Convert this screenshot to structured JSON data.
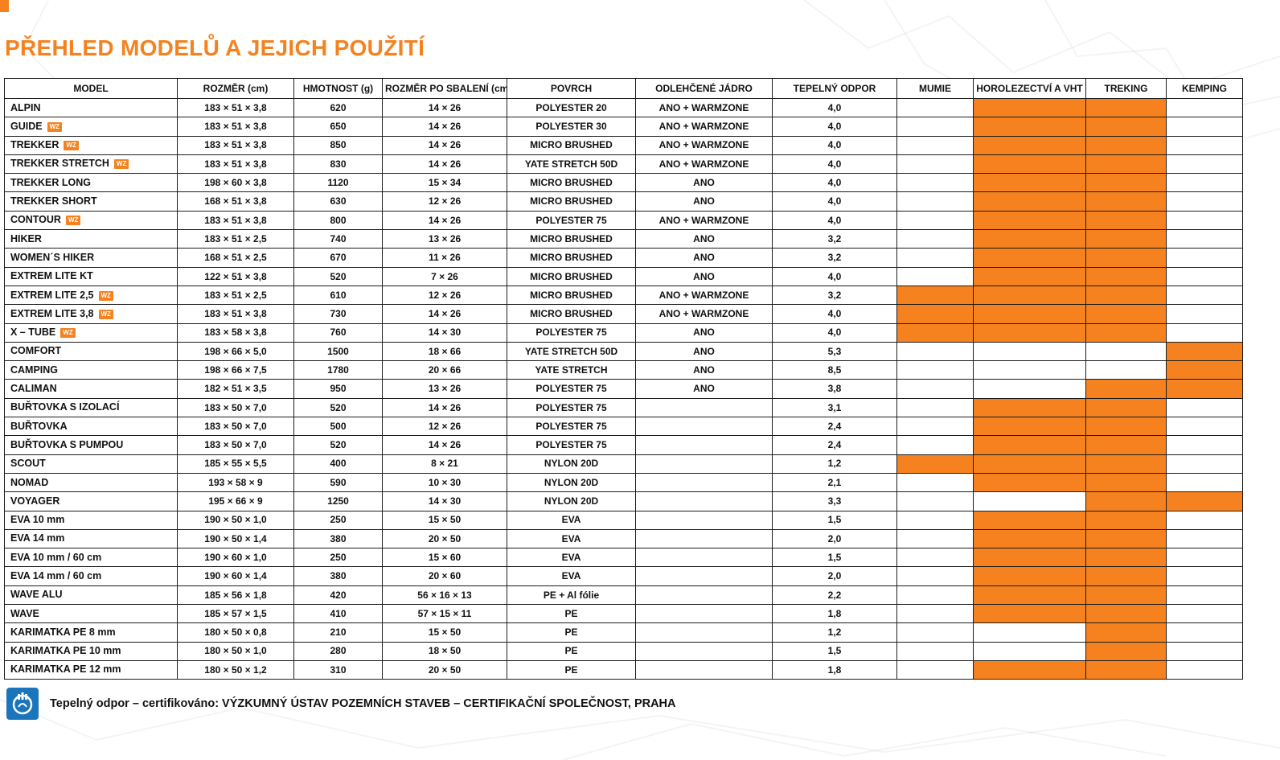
{
  "page": {
    "title": "PŘEHLED MODELŮ A JEJICH POUŽITÍ",
    "accent_color": "#f5821f",
    "footer": {
      "text": "Tepelný odpor – certifikováno: VÝZKUMNÝ ÚSTAV POZEMNÍCH STAVEB – CERTIFIKAČNÍ SPOLEČNOST, PRAHA",
      "logo_icon": "certification-logo",
      "logo_color": "#1b75bb"
    }
  },
  "table": {
    "wz_badge": "WZ",
    "columns": [
      "MODEL",
      "ROZMĚR (cm)",
      "HMOTNOST (g)",
      "ROZMĚR PO SBALENÍ (cm)",
      "POVRCH",
      "ODLEHČENÉ JÁDRO",
      "TEPELNÝ ODPOR",
      "MUMIE",
      "HOROLEZECTVÍ A VHT",
      "TREKING",
      "KEMPING"
    ],
    "rows": [
      {
        "model": "ALPIN",
        "wz": false,
        "rozmer": "183 × 51 × 3,8",
        "hmotnost": "620",
        "sbaleni": "14 × 26",
        "povrch": "POLYESTER 20",
        "jadro": "ANO + WARMZONE",
        "odpor": "4,0",
        "mumie": false,
        "horolezectvi": true,
        "treking": true,
        "kemping": false
      },
      {
        "model": "GUIDE",
        "wz": true,
        "rozmer": "183 × 51 × 3,8",
        "hmotnost": "650",
        "sbaleni": "14 × 26",
        "povrch": "POLYESTER 30",
        "jadro": "ANO + WARMZONE",
        "odpor": "4,0",
        "mumie": false,
        "horolezectvi": true,
        "treking": true,
        "kemping": false
      },
      {
        "model": "TREKKER",
        "wz": true,
        "rozmer": "183 × 51 × 3,8",
        "hmotnost": "850",
        "sbaleni": "14 × 26",
        "povrch": "MICRO BRUSHED",
        "jadro": "ANO + WARMZONE",
        "odpor": "4,0",
        "mumie": false,
        "horolezectvi": true,
        "treking": true,
        "kemping": false
      },
      {
        "model": "TREKKER STRETCH",
        "wz": true,
        "rozmer": "183 × 51 × 3,8",
        "hmotnost": "830",
        "sbaleni": "14 × 26",
        "povrch": "YATE STRETCH 50D",
        "jadro": "ANO + WARMZONE",
        "odpor": "4,0",
        "mumie": false,
        "horolezectvi": true,
        "treking": true,
        "kemping": false
      },
      {
        "model": "TREKKER LONG",
        "wz": false,
        "rozmer": "198 × 60 × 3,8",
        "hmotnost": "1120",
        "sbaleni": "15 × 34",
        "povrch": "MICRO BRUSHED",
        "jadro": "ANO",
        "odpor": "4,0",
        "mumie": false,
        "horolezectvi": true,
        "treking": true,
        "kemping": false
      },
      {
        "model": "TREKKER SHORT",
        "wz": false,
        "rozmer": "168 × 51 × 3,8",
        "hmotnost": "630",
        "sbaleni": "12 × 26",
        "povrch": "MICRO BRUSHED",
        "jadro": "ANO",
        "odpor": "4,0",
        "mumie": false,
        "horolezectvi": true,
        "treking": true,
        "kemping": false
      },
      {
        "model": "CONTOUR",
        "wz": true,
        "rozmer": "183 × 51 × 3,8",
        "hmotnost": "800",
        "sbaleni": "14 × 26",
        "povrch": "POLYESTER 75",
        "jadro": "ANO + WARMZONE",
        "odpor": "4,0",
        "mumie": false,
        "horolezectvi": true,
        "treking": true,
        "kemping": false
      },
      {
        "model": "HIKER",
        "wz": false,
        "rozmer": "183 × 51 × 2,5",
        "hmotnost": "740",
        "sbaleni": "13 × 26",
        "povrch": "MICRO BRUSHED",
        "jadro": "ANO",
        "odpor": "3,2",
        "mumie": false,
        "horolezectvi": true,
        "treking": true,
        "kemping": false
      },
      {
        "model": "WOMEN´S HIKER",
        "wz": false,
        "rozmer": "168 × 51 × 2,5",
        "hmotnost": "670",
        "sbaleni": "11 × 26",
        "povrch": "MICRO BRUSHED",
        "jadro": "ANO",
        "odpor": "3,2",
        "mumie": false,
        "horolezectvi": true,
        "treking": true,
        "kemping": false
      },
      {
        "model": "EXTREM LITE KT",
        "wz": false,
        "rozmer": "122 × 51 × 3,8",
        "hmotnost": "520",
        "sbaleni": "7 × 26",
        "povrch": "MICRO BRUSHED",
        "jadro": "ANO",
        "odpor": "4,0",
        "mumie": false,
        "horolezectvi": true,
        "treking": true,
        "kemping": false
      },
      {
        "model": "EXTREM LITE 2,5",
        "wz": true,
        "rozmer": "183 × 51 × 2,5",
        "hmotnost": "610",
        "sbaleni": "12 × 26",
        "povrch": "MICRO BRUSHED",
        "jadro": "ANO + WARMZONE",
        "odpor": "3,2",
        "mumie": true,
        "horolezectvi": true,
        "treking": true,
        "kemping": false
      },
      {
        "model": "EXTREM LITE 3,8",
        "wz": true,
        "rozmer": "183 × 51 × 3,8",
        "hmotnost": "730",
        "sbaleni": "14 × 26",
        "povrch": "MICRO BRUSHED",
        "jadro": "ANO + WARMZONE",
        "odpor": "4,0",
        "mumie": true,
        "horolezectvi": true,
        "treking": true,
        "kemping": false
      },
      {
        "model": "X – TUBE",
        "wz": true,
        "rozmer": "183 × 58 × 3,8",
        "hmotnost": "760",
        "sbaleni": "14 × 30",
        "povrch": "POLYESTER 75",
        "jadro": "ANO",
        "odpor": "4,0",
        "mumie": true,
        "horolezectvi": true,
        "treking": true,
        "kemping": false
      },
      {
        "model": "COMFORT",
        "wz": false,
        "rozmer": "198 × 66 × 5,0",
        "hmotnost": "1500",
        "sbaleni": "18 × 66",
        "povrch": "YATE STRETCH 50D",
        "jadro": "ANO",
        "odpor": "5,3",
        "mumie": false,
        "horolezectvi": false,
        "treking": false,
        "kemping": true
      },
      {
        "model": "CAMPING",
        "wz": false,
        "rozmer": "198 × 66 × 7,5",
        "hmotnost": "1780",
        "sbaleni": "20 × 66",
        "povrch": "YATE STRETCH",
        "jadro": "ANO",
        "odpor": "8,5",
        "mumie": false,
        "horolezectvi": false,
        "treking": false,
        "kemping": true
      },
      {
        "model": "CALIMAN",
        "wz": false,
        "rozmer": "182 × 51 × 3,5",
        "hmotnost": "950",
        "sbaleni": "13 × 26",
        "povrch": "POLYESTER 75",
        "jadro": "ANO",
        "odpor": "3,8",
        "mumie": false,
        "horolezectvi": false,
        "treking": true,
        "kemping": true
      },
      {
        "model": "BUŘTOVKA S IZOLACÍ",
        "wz": false,
        "rozmer": "183 × 50 × 7,0",
        "hmotnost": "520",
        "sbaleni": "14 × 26",
        "povrch": "POLYESTER 75",
        "jadro": "",
        "odpor": "3,1",
        "mumie": false,
        "horolezectvi": true,
        "treking": true,
        "kemping": false
      },
      {
        "model": "BUŘTOVKA",
        "wz": false,
        "rozmer": "183 × 50 × 7,0",
        "hmotnost": "500",
        "sbaleni": "12 × 26",
        "povrch": "POLYESTER 75",
        "jadro": "",
        "odpor": "2,4",
        "mumie": false,
        "horolezectvi": true,
        "treking": true,
        "kemping": false
      },
      {
        "model": "BUŘTOVKA S PUMPOU",
        "wz": false,
        "rozmer": "183 × 50 × 7,0",
        "hmotnost": "520",
        "sbaleni": "14 × 26",
        "povrch": "POLYESTER 75",
        "jadro": "",
        "odpor": "2,4",
        "mumie": false,
        "horolezectvi": true,
        "treking": true,
        "kemping": false
      },
      {
        "model": "SCOUT",
        "wz": false,
        "rozmer": "185 × 55 × 5,5",
        "hmotnost": "400",
        "sbaleni": "8 × 21",
        "povrch": "NYLON 20D",
        "jadro": "",
        "odpor": "1,2",
        "mumie": true,
        "horolezectvi": true,
        "treking": true,
        "kemping": false
      },
      {
        "model": "NOMAD",
        "wz": false,
        "rozmer": "193 × 58 × 9",
        "hmotnost": "590",
        "sbaleni": "10 × 30",
        "povrch": "NYLON 20D",
        "jadro": "",
        "odpor": "2,1",
        "mumie": false,
        "horolezectvi": true,
        "treking": true,
        "kemping": false
      },
      {
        "model": "VOYAGER",
        "wz": false,
        "rozmer": "195 × 66 × 9",
        "hmotnost": "1250",
        "sbaleni": "14 × 30",
        "povrch": "NYLON 20D",
        "jadro": "",
        "odpor": "3,3",
        "mumie": false,
        "horolezectvi": false,
        "treking": true,
        "kemping": true
      },
      {
        "model": "EVA 10 mm",
        "wz": false,
        "rozmer": "190 × 50 × 1,0",
        "hmotnost": "250",
        "sbaleni": "15 × 50",
        "povrch": "EVA",
        "jadro": "",
        "odpor": "1,5",
        "mumie": false,
        "horolezectvi": true,
        "treking": true,
        "kemping": false
      },
      {
        "model": "EVA 14 mm",
        "wz": false,
        "rozmer": "190 × 50 × 1,4",
        "hmotnost": "380",
        "sbaleni": "20 × 50",
        "povrch": "EVA",
        "jadro": "",
        "odpor": "2,0",
        "mumie": false,
        "horolezectvi": true,
        "treking": true,
        "kemping": false
      },
      {
        "model": "EVA 10 mm / 60 cm",
        "wz": false,
        "rozmer": "190 × 60 × 1,0",
        "hmotnost": "250",
        "sbaleni": "15 × 60",
        "povrch": "EVA",
        "jadro": "",
        "odpor": "1,5",
        "mumie": false,
        "horolezectvi": true,
        "treking": true,
        "kemping": false
      },
      {
        "model": "EVA 14 mm / 60 cm",
        "wz": false,
        "rozmer": "190 × 60 × 1,4",
        "hmotnost": "380",
        "sbaleni": "20 × 60",
        "povrch": "EVA",
        "jadro": "",
        "odpor": "2,0",
        "mumie": false,
        "horolezectvi": true,
        "treking": true,
        "kemping": false
      },
      {
        "model": "WAVE ALU",
        "wz": false,
        "rozmer": "185 × 56 × 1,8",
        "hmotnost": "420",
        "sbaleni": "56 × 16 × 13",
        "povrch": "PE + Al fólie",
        "jadro": "",
        "odpor": "2,2",
        "mumie": false,
        "horolezectvi": true,
        "treking": true,
        "kemping": false
      },
      {
        "model": "WAVE",
        "wz": false,
        "rozmer": "185 × 57 × 1,5",
        "hmotnost": "410",
        "sbaleni": "57 × 15 × 11",
        "povrch": "PE",
        "jadro": "",
        "odpor": "1,8",
        "mumie": false,
        "horolezectvi": true,
        "treking": true,
        "kemping": false
      },
      {
        "model": "KARIMATKA PE 8 mm",
        "wz": false,
        "rozmer": "180 × 50 × 0,8",
        "hmotnost": "210",
        "sbaleni": "15 × 50",
        "povrch": "PE",
        "jadro": "",
        "odpor": "1,2",
        "mumie": false,
        "horolezectvi": false,
        "treking": true,
        "kemping": false
      },
      {
        "model": "KARIMATKA PE 10 mm",
        "wz": false,
        "rozmer": "180 × 50 × 1,0",
        "hmotnost": "280",
        "sbaleni": "18 × 50",
        "povrch": "PE",
        "jadro": "",
        "odpor": "1,5",
        "mumie": false,
        "horolezectvi": false,
        "treking": true,
        "kemping": false
      },
      {
        "model": "KARIMATKA PE 12 mm",
        "wz": false,
        "rozmer": "180 × 50 × 1,2",
        "hmotnost": "310",
        "sbaleni": "20 × 50",
        "povrch": "PE",
        "jadro": "",
        "odpor": "1,8",
        "mumie": false,
        "horolezectvi": true,
        "treking": true,
        "kemping": false
      }
    ]
  }
}
